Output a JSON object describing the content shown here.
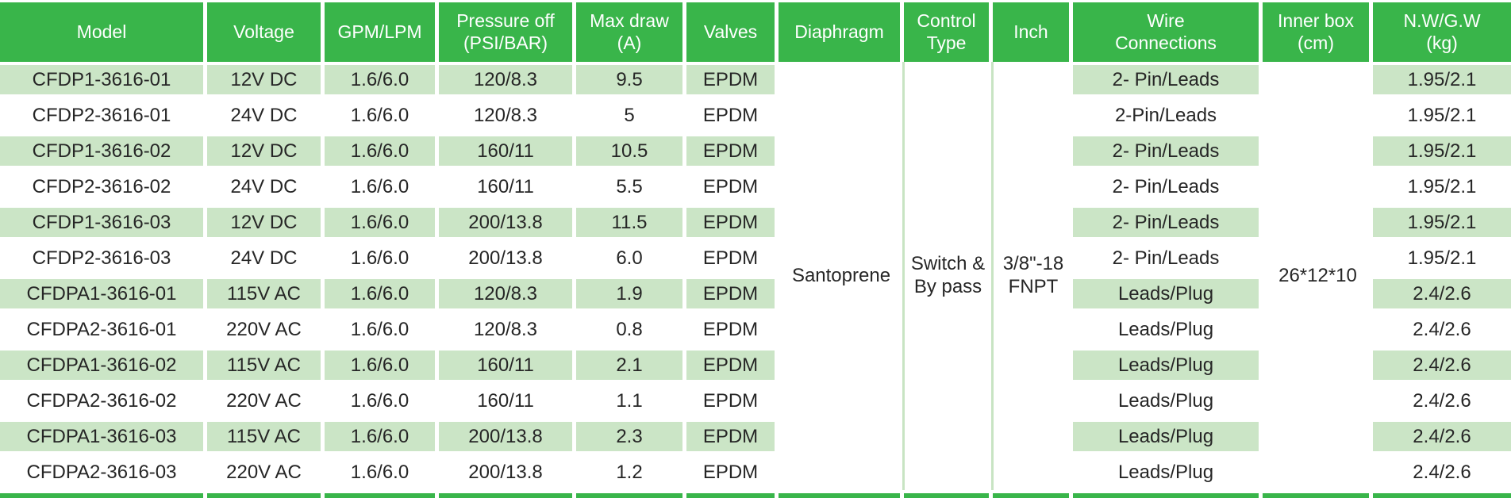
{
  "table": {
    "colors": {
      "header_green": "#39B54A",
      "row_shade_green": "#CBE5C6",
      "divider_green": "#C8E4C3",
      "text": "#262626",
      "header_text": "#FFFFFF"
    },
    "columns": [
      {
        "label": "Model"
      },
      {
        "label": "Voltage"
      },
      {
        "label": "GPM/LPM"
      },
      {
        "label": "Pressure off\n(PSI/BAR)"
      },
      {
        "label": "Max draw\n(A)"
      },
      {
        "label": "Valves"
      },
      {
        "label": "Diaphragm"
      },
      {
        "label": "Control\nType"
      },
      {
        "label": "Inch"
      },
      {
        "label": "Wire\nConnections"
      },
      {
        "label": "Inner box\n(cm)"
      },
      {
        "label": "N.W/G.W\n(kg)"
      }
    ],
    "merged": {
      "diaphragm": "Santoprene",
      "control_type": "Switch &\nBy pass",
      "inch": "3/8\"-18\nFNPT",
      "inner_box": "26*12*10"
    },
    "rows": [
      {
        "model": "CFDP1-3616-01",
        "voltage": "12V DC",
        "gpm_lpm": "1.6/6.0",
        "pressure_off": "120/8.3",
        "max_draw": "9.5",
        "valves": "EPDM",
        "wire": "2- Pin/Leads",
        "nw_gw": "1.95/2.1"
      },
      {
        "model": "CFDP2-3616-01",
        "voltage": "24V DC",
        "gpm_lpm": "1.6/6.0",
        "pressure_off": "120/8.3",
        "max_draw": "5",
        "valves": "EPDM",
        "wire": "2-Pin/Leads",
        "nw_gw": "1.95/2.1"
      },
      {
        "model": "CFDP1-3616-02",
        "voltage": "12V DC",
        "gpm_lpm": "1.6/6.0",
        "pressure_off": "160/11",
        "max_draw": "10.5",
        "valves": "EPDM",
        "wire": "2- Pin/Leads",
        "nw_gw": "1.95/2.1"
      },
      {
        "model": "CFDP2-3616-02",
        "voltage": "24V DC",
        "gpm_lpm": "1.6/6.0",
        "pressure_off": "160/11",
        "max_draw": "5.5",
        "valves": "EPDM",
        "wire": "2- Pin/Leads",
        "nw_gw": "1.95/2.1"
      },
      {
        "model": "CFDP1-3616-03",
        "voltage": "12V DC",
        "gpm_lpm": "1.6/6.0",
        "pressure_off": "200/13.8",
        "max_draw": "11.5",
        "valves": "EPDM",
        "wire": "2- Pin/Leads",
        "nw_gw": "1.95/2.1"
      },
      {
        "model": "CFDP2-3616-03",
        "voltage": "24V DC",
        "gpm_lpm": "1.6/6.0",
        "pressure_off": "200/13.8",
        "max_draw": "6.0",
        "valves": "EPDM",
        "wire": "2- Pin/Leads",
        "nw_gw": "1.95/2.1"
      },
      {
        "model": "CFDPA1-3616-01",
        "voltage": "115V AC",
        "gpm_lpm": "1.6/6.0",
        "pressure_off": "120/8.3",
        "max_draw": "1.9",
        "valves": "EPDM",
        "wire": "Leads/Plug",
        "nw_gw": "2.4/2.6"
      },
      {
        "model": "CFDPA2-3616-01",
        "voltage": "220V AC",
        "gpm_lpm": "1.6/6.0",
        "pressure_off": "120/8.3",
        "max_draw": "0.8",
        "valves": "EPDM",
        "wire": "Leads/Plug",
        "nw_gw": "2.4/2.6"
      },
      {
        "model": "CFDPA1-3616-02",
        "voltage": "115V AC",
        "gpm_lpm": "1.6/6.0",
        "pressure_off": "160/11",
        "max_draw": "2.1",
        "valves": "EPDM",
        "wire": "Leads/Plug",
        "nw_gw": "2.4/2.6"
      },
      {
        "model": "CFDPA2-3616-02",
        "voltage": "220V AC",
        "gpm_lpm": "1.6/6.0",
        "pressure_off": "160/11",
        "max_draw": "1.1",
        "valves": "EPDM",
        "wire": "Leads/Plug",
        "nw_gw": "2.4/2.6"
      },
      {
        "model": "CFDPA1-3616-03",
        "voltage": "115V AC",
        "gpm_lpm": "1.6/6.0",
        "pressure_off": "200/13.8",
        "max_draw": "2.3",
        "valves": "EPDM",
        "wire": "Leads/Plug",
        "nw_gw": "2.4/2.6"
      },
      {
        "model": "CFDPA2-3616-03",
        "voltage": "220V AC",
        "gpm_lpm": "1.6/6.0",
        "pressure_off": "200/13.8",
        "max_draw": "1.2",
        "valves": "EPDM",
        "wire": "Leads/Plug",
        "nw_gw": "2.4/2.6"
      }
    ]
  }
}
